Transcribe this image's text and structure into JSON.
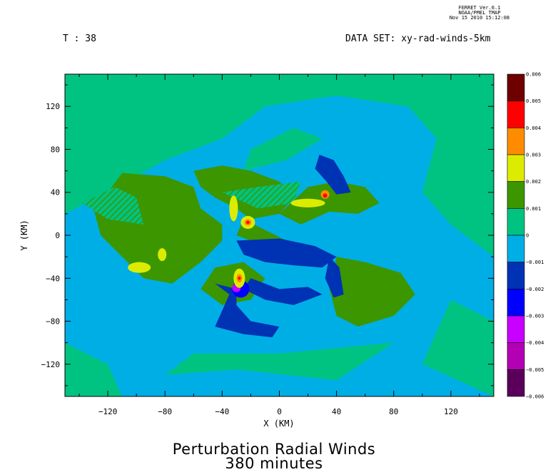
{
  "stamp": {
    "line1": "FERRET Ver.6.1",
    "line2": "NOAA/PMEL TMAP",
    "line3": "Nov 15 2010 15:12:08"
  },
  "header": {
    "time_label": "T : 38",
    "dataset_label": "DATA SET: xy-rad-winds-5km"
  },
  "chart_data": {
    "type": "heatmap",
    "title": "Perturbation Radial Winds",
    "subtitle": "380 minutes",
    "xlabel": "X (KM)",
    "ylabel": "Y (KM)",
    "xlim": [
      -150,
      150
    ],
    "ylim": [
      -150,
      150
    ],
    "x_ticks": [
      "-120",
      "-80",
      "-40",
      "0",
      "40",
      "80",
      "120"
    ],
    "y_ticks": [
      "120",
      "80",
      "40",
      "0",
      "-40",
      "-80",
      "-120"
    ],
    "x_tick_values": [
      -120,
      -80,
      -40,
      0,
      40,
      80,
      120
    ],
    "y_tick_values": [
      120,
      80,
      40,
      0,
      -40,
      -80,
      -120
    ],
    "colorbar": {
      "levels": [
        "0.006",
        "0.005",
        "0.004",
        "0.003",
        "0.002",
        "0.001",
        "0",
        "-0.001",
        "-0.002",
        "-0.003",
        "-0.004",
        "-0.005",
        "-0.006"
      ],
      "colors": [
        "#6e0000",
        "#ff0000",
        "#ff8c00",
        "#dcec00",
        "#3c9600",
        "#00c382",
        "#00aee6",
        "#0032b4",
        "#0000ff",
        "#c800ff",
        "#b400b4",
        "#5a005a"
      ]
    },
    "field_colors": {
      "background": "#00c382",
      "negative_weak": "#00aee6",
      "positive_weak": "#3c9600",
      "positive_mid": "#dcec00",
      "positive_strong": "#ff8c00",
      "positive_peak": "#ff0000",
      "negative_mid": "#0032b4",
      "negative_strong": "#0000ff",
      "negative_peak": "#c800ff"
    },
    "grid": false
  }
}
